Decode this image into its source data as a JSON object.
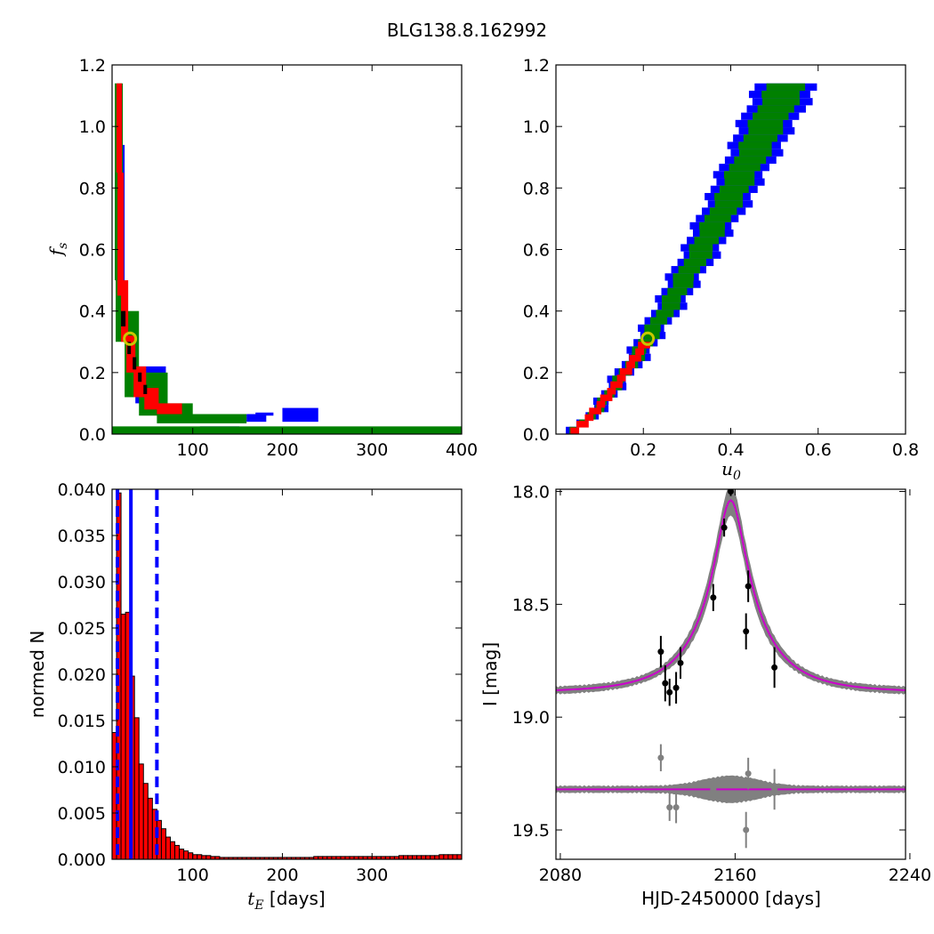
{
  "figure": {
    "title": "BLG138.8.162992"
  },
  "chart_data": [
    {
      "type": "heatmap",
      "xlabel": "",
      "ylabel_main": "f",
      "ylabel_sub": "s",
      "xlim": [
        10,
        400
      ],
      "ylim": [
        0,
        1.2
      ],
      "xticks": [
        100,
        200,
        300,
        400
      ],
      "xtick_labels": [
        "100",
        "200",
        "300",
        "400"
      ],
      "yticks": [
        0,
        0.2,
        0.4,
        0.6,
        0.8,
        1.0,
        1.2
      ],
      "ytick_labels": [
        "0.0",
        "0.2",
        "0.4",
        "0.6",
        "0.8",
        "1.0",
        "1.2"
      ],
      "confidence_colors": {
        "outer": "#0000ff",
        "middle": "#008000",
        "inner": "#ff0000",
        "best": "#000000"
      },
      "best_fit": {
        "x": 30,
        "y": 0.31
      },
      "regions": {
        "outer": [
          [
            108,
            0,
            152,
            0.025
          ],
          [
            160,
            0.04,
            182,
            0.065
          ],
          [
            200,
            0.04,
            240,
            0.085
          ],
          [
            170,
            0.06,
            190,
            0.07
          ],
          [
            14,
            0.46,
            24,
            0.94
          ],
          [
            36,
            0.1,
            70,
            0.22
          ]
        ],
        "middle": [
          [
            10,
            0,
            400,
            0.025
          ],
          [
            60,
            0.035,
            160,
            0.065
          ],
          [
            13,
            0.5,
            22,
            1.14
          ],
          [
            14,
            0.3,
            24,
            0.5
          ],
          [
            24,
            0.12,
            40,
            0.4
          ],
          [
            40,
            0.06,
            72,
            0.2
          ],
          [
            72,
            0.05,
            100,
            0.1
          ]
        ],
        "inner": [
          [
            15,
            0.85,
            21,
            1.14
          ],
          [
            16,
            0.45,
            23,
            0.85
          ],
          [
            20,
            0.3,
            28,
            0.5
          ],
          [
            26,
            0.2,
            36,
            0.32
          ],
          [
            34,
            0.12,
            48,
            0.22
          ],
          [
            46,
            0.08,
            62,
            0.15
          ],
          [
            60,
            0.065,
            88,
            0.1
          ]
        ],
        "best": [
          [
            20,
            0.35,
            25,
            0.4
          ],
          [
            27,
            0.26,
            31,
            0.3
          ],
          [
            33,
            0.21,
            37,
            0.25
          ],
          [
            39,
            0.17,
            43,
            0.2
          ],
          [
            45,
            0.13,
            49,
            0.16
          ]
        ]
      }
    },
    {
      "type": "heatmap",
      "xlabel_main": "u",
      "xlabel_sub": "0",
      "ylabel": "",
      "xlim": [
        0,
        0.8
      ],
      "ylim": [
        0,
        1.2
      ],
      "xticks": [
        0.2,
        0.4,
        0.6,
        0.8
      ],
      "xtick_labels": [
        "0.2",
        "0.4",
        "0.6",
        "0.8"
      ],
      "yticks": [
        0,
        0.2,
        0.4,
        0.6,
        0.8,
        1.0,
        1.2
      ],
      "ytick_labels": [
        "0.0",
        "0.2",
        "0.4",
        "0.6",
        "0.8",
        "1.0",
        "1.2"
      ],
      "best_fit": {
        "x": 0.21,
        "y": 0.31
      },
      "band": {
        "outer": [
          [
            0.01,
            0.0,
            0.03
          ],
          [
            0.1,
            0.14,
            0.17
          ],
          [
            0.2,
            0.32,
            0.33
          ],
          [
            0.3,
            0.49,
            0.46
          ],
          [
            0.4,
            0.66,
            0.57
          ],
          [
            0.5,
            0.82,
            0.67
          ],
          [
            0.6,
            0.97,
            0.75
          ],
          [
            0.7,
            1.1,
            0.82
          ],
          [
            0.75,
            1.14,
            0.85
          ]
        ],
        "middle": [
          [
            0.015,
            0.0,
            0.03
          ],
          [
            0.1,
            0.15,
            0.16
          ],
          [
            0.2,
            0.3,
            0.28
          ],
          [
            0.3,
            0.4,
            0.37
          ],
          [
            0.4,
            0.5,
            0.45
          ],
          [
            0.5,
            0.62,
            0.55
          ],
          [
            0.6,
            0.72,
            0.63
          ],
          [
            0.7,
            0.82,
            0.72
          ],
          [
            0.8,
            0.9,
            0.78
          ],
          [
            0.9,
            0.95,
            0.82
          ],
          [
            1.0,
            1.0,
            0.87
          ],
          [
            1.14,
            1.05,
            0.92
          ]
        ],
        "inner": [
          [
            0.02,
            0.0,
            0.03
          ],
          [
            0.1,
            0.1,
            0.12
          ],
          [
            0.2,
            0.19,
            0.22
          ],
          [
            0.3,
            0.27,
            0.3
          ]
        ]
      }
    },
    {
      "type": "bar",
      "xlabel_main": "t",
      "xlabel_sub": "E",
      "xlabel_unit": "[days]",
      "ylabel": "normed N",
      "xlim": [
        10,
        400
      ],
      "ylim": [
        0,
        0.04
      ],
      "bin_width": 5,
      "bin_start": 10,
      "xticks": [
        100,
        200,
        300
      ],
      "xtick_labels": [
        "100",
        "200",
        "300"
      ],
      "yticks": [
        0,
        0.005,
        0.01,
        0.015,
        0.02,
        0.025,
        0.03,
        0.035,
        0.04
      ],
      "ytick_labels": [
        "0.000",
        "0.005",
        "0.010",
        "0.015",
        "0.020",
        "0.025",
        "0.030",
        "0.035",
        "0.040"
      ],
      "values": [
        0.0137,
        0.0396,
        0.0265,
        0.0267,
        0.0198,
        0.0153,
        0.0103,
        0.0082,
        0.0066,
        0.0054,
        0.0042,
        0.0033,
        0.0024,
        0.0019,
        0.0015,
        0.0011,
        0.0009,
        0.0007,
        0.0005,
        0.0005,
        0.0004,
        0.0004,
        0.0003,
        0.0003,
        0.0002,
        0.0002,
        0.0002,
        0.0002,
        0.0002,
        0.0002,
        0.0002,
        0.0002,
        0.0002,
        0.0002,
        0.0002,
        0.0002,
        0.0002,
        0.0002,
        0.0002,
        0.0002,
        0.0002,
        0.0002,
        0.0002,
        0.0002,
        0.0002,
        0.0003,
        0.0003,
        0.0003,
        0.0003,
        0.0003,
        0.0003,
        0.0003,
        0.0003,
        0.0003,
        0.0003,
        0.0003,
        0.0003,
        0.0003,
        0.0003,
        0.0003,
        0.0003,
        0.0003,
        0.0003,
        0.0003,
        0.0004,
        0.0004,
        0.0004,
        0.0004,
        0.0004,
        0.0004,
        0.0004,
        0.0004,
        0.0004,
        0.0005,
        0.0005,
        0.0005,
        0.0005,
        0.0005
      ],
      "bar_color": "#ff0000",
      "vlines": [
        {
          "x": 31,
          "style": "solid",
          "color": "#0000ff"
        },
        {
          "x": 16,
          "style": "dashed",
          "color": "#0000ff"
        },
        {
          "x": 60,
          "style": "dashed",
          "color": "#0000ff"
        }
      ]
    },
    {
      "type": "line",
      "xlabel": "HJD-2450000 [days]",
      "ylabel": "I [mag]",
      "xlim": [
        2080,
        2240
      ],
      "ylim": [
        19.63,
        17.99
      ],
      "y_inverted": true,
      "xticks": [
        2080,
        2160,
        2240
      ],
      "xtick_labels": [
        "2080",
        "2160",
        "2240"
      ],
      "yticks": [
        18.0,
        18.5,
        19.0,
        19.5
      ],
      "ytick_labels": [
        "18.0",
        "18.5",
        "19.0",
        "19.5"
      ],
      "model": {
        "t0": 2158,
        "tE": 31,
        "u0": 0.21,
        "fs": 0.31,
        "baseline": 18.89,
        "color": "#cc00cc",
        "band_color": "#808080"
      },
      "residual_offset": 19.32,
      "data": [
        {
          "x": 2126,
          "y": 18.71,
          "err": 0.07
        },
        {
          "x": 2128,
          "y": 18.85,
          "err": 0.08
        },
        {
          "x": 2130,
          "y": 18.89,
          "err": 0.06
        },
        {
          "x": 2133,
          "y": 18.87,
          "err": 0.07
        },
        {
          "x": 2135,
          "y": 18.76,
          "err": 0.07
        },
        {
          "x": 2150,
          "y": 18.47,
          "err": 0.06
        },
        {
          "x": 2155,
          "y": 18.16,
          "err": 0.04
        },
        {
          "x": 2158,
          "y": 18.0,
          "err": 0.02
        },
        {
          "x": 2165,
          "y": 18.62,
          "err": 0.08
        },
        {
          "x": 2166,
          "y": 18.42,
          "err": 0.07
        },
        {
          "x": 2178,
          "y": 18.78,
          "err": 0.09
        }
      ],
      "residuals": [
        {
          "x": 2126,
          "y": 19.18,
          "err": 0.06
        },
        {
          "x": 2130,
          "y": 19.4,
          "err": 0.06
        },
        {
          "x": 2133,
          "y": 19.4,
          "err": 0.07
        },
        {
          "x": 2150,
          "y": 19.32,
          "err": 0.05
        },
        {
          "x": 2165,
          "y": 19.5,
          "err": 0.08
        },
        {
          "x": 2166,
          "y": 19.25,
          "err": 0.07
        },
        {
          "x": 2178,
          "y": 19.32,
          "err": 0.09
        }
      ]
    }
  ]
}
